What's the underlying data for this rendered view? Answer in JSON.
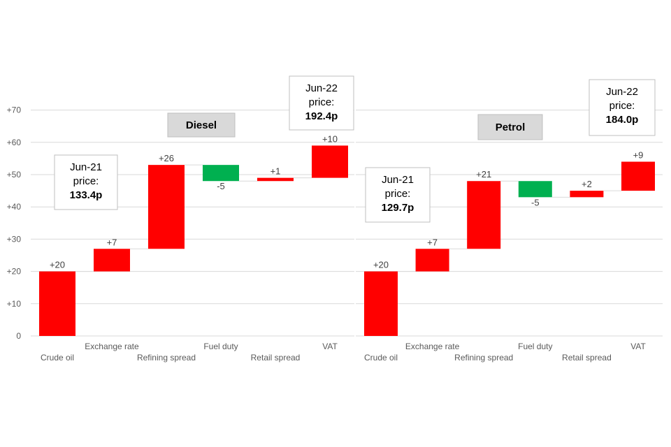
{
  "chart_data": [
    {
      "type": "waterfall",
      "title": "Diesel",
      "ylim": [
        0,
        70
      ],
      "yticks": [
        "0",
        "+10",
        "+20",
        "+30",
        "+40",
        "+50",
        "+60",
        "+70"
      ],
      "ytick_values": [
        0,
        10,
        20,
        30,
        40,
        50,
        60,
        70
      ],
      "grid": true,
      "categories": [
        "Crude oil",
        "Exchange rate",
        "Refining spread",
        "Fuel duty",
        "Retail spread",
        "VAT"
      ],
      "values": [
        20,
        7,
        26,
        -5,
        1,
        10
      ],
      "labels": [
        "+20",
        "+7",
        "+26",
        "-5",
        "+1",
        "+10"
      ],
      "start_box": {
        "line1": "Jun-21",
        "line2": "price:",
        "value": "133.4p"
      },
      "end_box": {
        "line1": "Jun-22",
        "line2": "price:",
        "value": "192.4p"
      },
      "colors": {
        "increase": "#ff0000",
        "decrease": "#00b050"
      }
    },
    {
      "type": "waterfall",
      "title": "Petrol",
      "ylim": [
        0,
        70
      ],
      "grid": true,
      "categories": [
        "Crude oil",
        "Exchange rate",
        "Refining spread",
        "Fuel duty",
        "Retail spread",
        "VAT"
      ],
      "values": [
        20,
        7,
        21,
        -5,
        2,
        9
      ],
      "labels": [
        "+20",
        "+7",
        "+21",
        "-5",
        "+2",
        "+9"
      ],
      "start_box": {
        "line1": "Jun-21",
        "line2": "price:",
        "value": "129.7p"
      },
      "end_box": {
        "line1": "Jun-22",
        "line2": "price:",
        "value": "184.0p"
      },
      "colors": {
        "increase": "#ff0000",
        "decrease": "#00b050"
      }
    }
  ]
}
